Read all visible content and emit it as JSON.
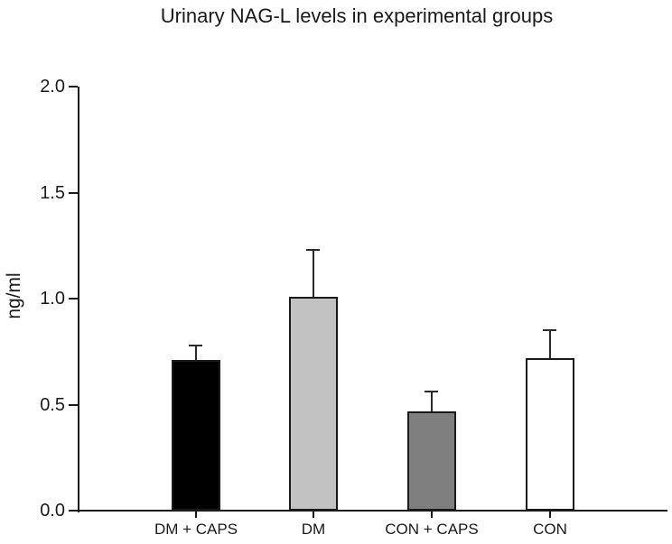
{
  "figure": {
    "background": "#ffffff"
  },
  "chart_data": {
    "type": "bar",
    "title": "Urinary NAG-L levels in experimental groups",
    "xlabel": "",
    "ylabel": "ng/ml",
    "categories": [
      "DM + CAPS",
      "DM",
      "CON + CAPS",
      "CON"
    ],
    "values": [
      0.71,
      1.01,
      0.47,
      0.72
    ],
    "errors": [
      0.07,
      0.22,
      0.09,
      0.13
    ],
    "error_type": "upper-only",
    "bar_fill_colors": [
      "#000000",
      "#c2c2c2",
      "#7f7f7f",
      "#ffffff"
    ],
    "bar_border_color": "#1a1a1a",
    "axis_color": "#1a1a1a",
    "ylim": [
      0.0,
      2.0
    ],
    "yticks": [
      "0.0",
      "0.5",
      "1.0",
      "1.5",
      "2.0"
    ],
    "grid": false,
    "legend": "none"
  }
}
